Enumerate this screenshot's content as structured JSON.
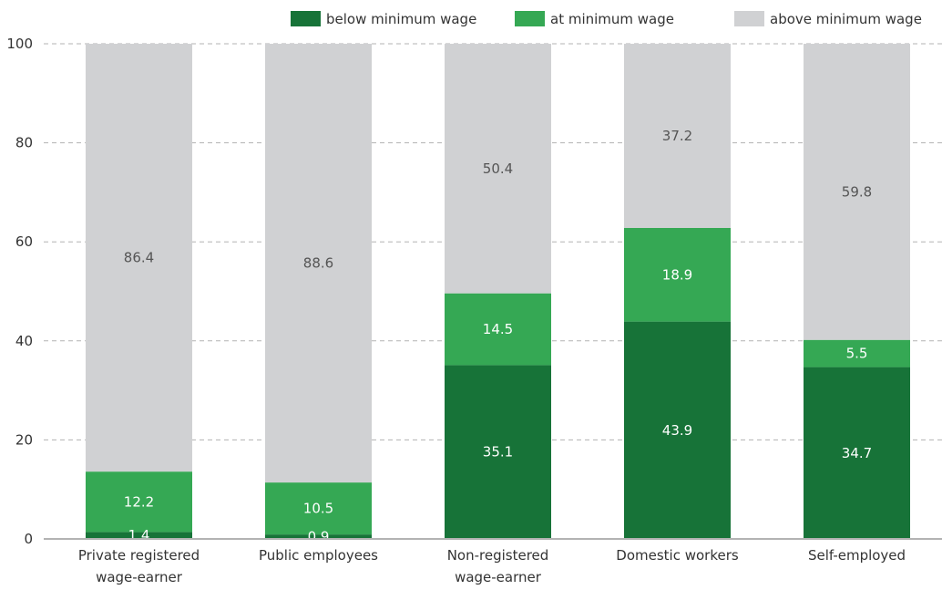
{
  "chart_data": {
    "type": "bar",
    "stacked": true,
    "categories": [
      [
        "Private registered",
        "wage-earner"
      ],
      [
        "Public employees"
      ],
      [
        "Non-registered",
        "wage-earner"
      ],
      [
        "Domestic workers"
      ],
      [
        "Self-employed"
      ]
    ],
    "series": [
      {
        "name": "below minimum wage",
        "values": [
          1.4,
          0.9,
          35.1,
          43.9,
          34.7
        ],
        "color": "#177338",
        "label_color": "#ffffff"
      },
      {
        "name": "at minimum wage",
        "values": [
          12.2,
          10.5,
          14.5,
          18.9,
          5.5
        ],
        "color": "#35a854",
        "label_color": "#ffffff"
      },
      {
        "name": "above minimum wage",
        "values": [
          86.4,
          88.6,
          50.4,
          37.2,
          59.8
        ],
        "color": "#d0d1d3",
        "label_color": "#555555"
      }
    ],
    "yticks": [
      0,
      20,
      40,
      60,
      80,
      100
    ],
    "ylim": [
      0,
      100
    ],
    "grid": true,
    "legend_position": "top"
  }
}
